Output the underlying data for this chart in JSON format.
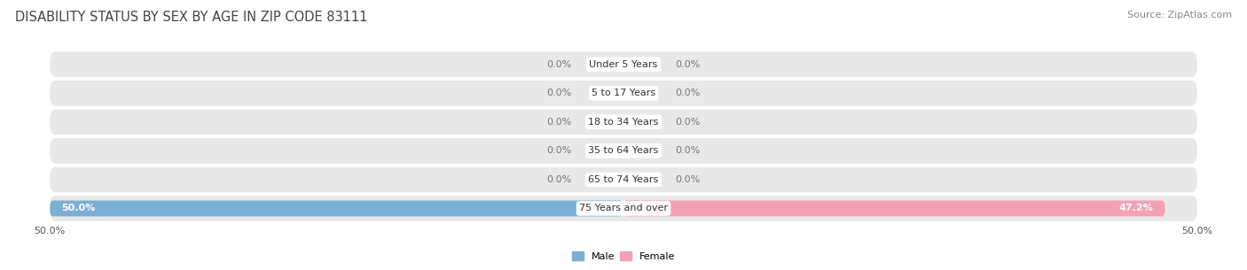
{
  "title": "DISABILITY STATUS BY SEX BY AGE IN ZIP CODE 83111",
  "source": "Source: ZipAtlas.com",
  "categories": [
    "Under 5 Years",
    "5 to 17 Years",
    "18 to 34 Years",
    "35 to 64 Years",
    "65 to 74 Years",
    "75 Years and over"
  ],
  "male_values": [
    0.0,
    0.0,
    0.0,
    0.0,
    0.0,
    50.0
  ],
  "female_values": [
    0.0,
    0.0,
    0.0,
    0.0,
    0.0,
    47.2
  ],
  "male_color": "#7bafd4",
  "female_color": "#f4a0b5",
  "row_bg_color": "#e8e8e8",
  "xlim": 50.0,
  "title_fontsize": 10.5,
  "source_fontsize": 8,
  "label_fontsize": 8,
  "category_fontsize": 8,
  "tick_fontsize": 8,
  "bar_height": 0.55,
  "row_rounding": 0.44,
  "bar_rounding": 0.27
}
